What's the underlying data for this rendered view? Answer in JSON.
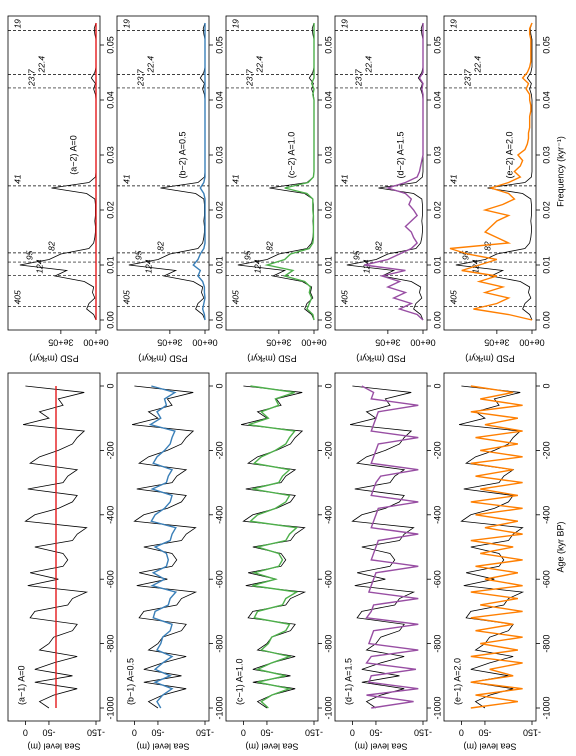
{
  "chart_data": [
    {
      "type": "line",
      "xlabel": "Age (kyr BP)",
      "ylabel": "Sea level (m)",
      "x": [
        -1000,
        -980,
        -960,
        -940,
        -920,
        -900,
        -880,
        -860,
        -840,
        -820,
        -800,
        -780,
        -760,
        -740,
        -720,
        -700,
        -680,
        -660,
        -640,
        -620,
        -600,
        -580,
        -560,
        -540,
        -520,
        -500,
        -480,
        -460,
        -440,
        -420,
        -400,
        -380,
        -360,
        -340,
        -320,
        -300,
        -280,
        -260,
        -240,
        -220,
        -200,
        -180,
        -160,
        -140,
        -120,
        -100,
        -80,
        -60,
        -40,
        -20,
        0
      ],
      "xlim": [
        -1000,
        0
      ],
      "xticks": [
        -1000,
        -800,
        -600,
        -400,
        -200,
        0
      ],
      "ylim": [
        -150,
        20
      ],
      "yticks": [
        0,
        -50,
        -150
      ],
      "observed": {
        "color": "#000000",
        "values": [
          -50,
          -30,
          -60,
          -110,
          -20,
          -100,
          -20,
          -60,
          -110,
          -30,
          -50,
          -60,
          -100,
          -110,
          -10,
          -20,
          -90,
          -100,
          -130,
          -5,
          -70,
          -10,
          -80,
          -90,
          -80,
          -20,
          -100,
          -110,
          -130,
          0,
          -20,
          -70,
          -100,
          -110,
          -5,
          -80,
          -90,
          -110,
          -10,
          -30,
          -70,
          -100,
          -110,
          -125,
          5,
          -50,
          -30,
          -80,
          -70,
          -125,
          0
        ]
      },
      "panels": [
        {
          "title": "(a−1) A=0",
          "color": "#e41a1c",
          "values": [
            -65,
            -65,
            -65,
            -65,
            -65,
            -65,
            -65,
            -65,
            -65,
            -65,
            -65,
            -65,
            -65,
            -65,
            -65,
            -65,
            -65,
            -65,
            -65,
            -65,
            -65,
            -65,
            -65,
            -65,
            -65,
            -65,
            -65,
            -65,
            -65,
            -65,
            -65,
            -65,
            -65,
            -65,
            -65,
            -65,
            -65,
            -65,
            -65,
            -65,
            -65,
            -65,
            -65,
            -65,
            -65,
            -65,
            -65,
            -65,
            -65,
            -65,
            -65
          ]
        },
        {
          "title": "(b−1) A=0.5",
          "color": "#3a7fb8",
          "values": [
            -56,
            -48,
            -60,
            -80,
            -44,
            -76,
            -44,
            -60,
            -80,
            -48,
            -56,
            -60,
            -76,
            -80,
            -40,
            -44,
            -72,
            -76,
            -88,
            -38,
            -64,
            -40,
            -68,
            -72,
            -68,
            -44,
            -76,
            -80,
            -88,
            -36,
            -44,
            -64,
            -76,
            -80,
            -38,
            -68,
            -72,
            -80,
            -40,
            -48,
            -64,
            -76,
            -80,
            -86,
            -34,
            -56,
            -48,
            -68,
            -64,
            -86,
            -36
          ]
        },
        {
          "title": "(c−1) A=1.0",
          "color": "#4daf4a",
          "values": [
            -53,
            -38,
            -60,
            -98,
            -30,
            -90,
            -30,
            -60,
            -98,
            -38,
            -53,
            -60,
            -90,
            -98,
            -23,
            -30,
            -83,
            -90,
            -113,
            -19,
            -68,
            -23,
            -75,
            -83,
            -75,
            -30,
            -90,
            -98,
            -113,
            -15,
            -30,
            -68,
            -90,
            -98,
            -19,
            -75,
            -83,
            -98,
            -23,
            -38,
            -68,
            -90,
            -98,
            -109,
            -11,
            -53,
            -38,
            -75,
            -68,
            -109,
            -15
          ]
        },
        {
          "title": "(d−1) A=1.5",
          "color": "#984ea3",
          "values": [
            -40,
            -130,
            -30,
            -140,
            -35,
            -40,
            -135,
            -30,
            -40,
            -140,
            -35,
            -40,
            -45,
            -140,
            -30,
            -40,
            -45,
            -140,
            -35,
            -40,
            -45,
            -50,
            -140,
            -40,
            -45,
            -50,
            -55,
            -140,
            -40,
            -45,
            -50,
            -55,
            -140,
            -40,
            -45,
            -50,
            -60,
            -140,
            -40,
            -45,
            -50,
            -55,
            -140,
            -40,
            -45,
            -50,
            -55,
            -140,
            -40,
            -45,
            -20
          ]
        },
        {
          "title": "(e−1) A=2.0",
          "color": "#ff7f00",
          "values": [
            -20,
            -120,
            -30,
            -130,
            -20,
            -110,
            -60,
            -130,
            -20,
            -120,
            -40,
            -130,
            -30,
            -110,
            -20,
            -130,
            -40,
            -120,
            -20,
            -130,
            -50,
            -120,
            -30,
            -130,
            -40,
            -110,
            -20,
            -130,
            -50,
            -120,
            -30,
            -130,
            -20,
            -120,
            -40,
            -130,
            -30,
            -110,
            -20,
            -130,
            -40,
            -120,
            -30,
            -130,
            -50,
            -120,
            -20,
            -130,
            -40,
            -110,
            -20
          ]
        }
      ]
    },
    {
      "type": "line",
      "xlabel": "Frequency (kyr⁻¹)",
      "ylabel": "PSD (m²kyr)",
      "x": [
        0,
        0.001,
        0.002,
        0.003,
        0.004,
        0.005,
        0.006,
        0.007,
        0.008,
        0.009,
        0.01,
        0.011,
        0.012,
        0.013,
        0.014,
        0.015,
        0.016,
        0.017,
        0.018,
        0.019,
        0.02,
        0.021,
        0.022,
        0.023,
        0.024,
        0.025,
        0.026,
        0.027,
        0.028,
        0.029,
        0.03,
        0.031,
        0.032,
        0.033,
        0.034,
        0.035,
        0.036,
        0.037,
        0.038,
        0.039,
        0.04,
        0.041,
        0.042,
        0.043,
        0.044,
        0.045,
        0.046,
        0.047,
        0.048,
        0.049,
        0.05,
        0.051,
        0.052,
        0.053,
        0.054
      ],
      "xlim": [
        0,
        0.054
      ],
      "xticks": [
        {
          "value": 0,
          "label": "0.00"
        },
        0.01,
        0.02,
        0.03,
        0.04,
        0.05
      ],
      "ylim": [
        0,
        700000
      ],
      "yticks": [
        {
          "value": 0,
          "label": "0e+00"
        },
        {
          "value": 300000,
          "label": "3e+05"
        }
      ],
      "periods": [
        {
          "value": 0.00247,
          "label": "405"
        },
        {
          "value": 0.00806,
          "label": "124"
        },
        {
          "value": 0.01053,
          "label": "95"
        },
        {
          "value": 0.0122,
          "label": "82"
        },
        {
          "value": 0.02439,
          "label": "41"
        },
        {
          "value": 0.04219,
          "label": "23.7"
        },
        {
          "value": 0.04464,
          "label": "22.4"
        },
        {
          "value": 0.05263,
          "label": "19"
        }
      ],
      "observed": {
        "color": "#000000",
        "values": [
          0,
          20000,
          80000,
          60000,
          10000,
          30000,
          20000,
          100000,
          350000,
          250000,
          650000,
          400000,
          300000,
          60000,
          20000,
          10000,
          5000,
          5000,
          10000,
          5000,
          5000,
          5000,
          10000,
          80000,
          380000,
          60000,
          5000,
          0,
          0,
          0,
          0,
          0,
          0,
          0,
          0,
          0,
          0,
          0,
          0,
          0,
          0,
          5000,
          20000,
          5000,
          40000,
          10000,
          0,
          0,
          0,
          0,
          0,
          0,
          10000,
          15000,
          0
        ]
      },
      "panels": [
        {
          "title": "(a−2) A=0",
          "color": "#e41a1c",
          "values": [
            0,
            0,
            0,
            0,
            0,
            0,
            0,
            0,
            0,
            0,
            0,
            0,
            0,
            0,
            0,
            0,
            0,
            0,
            0,
            0,
            0,
            0,
            0,
            0,
            0,
            0,
            0,
            0,
            0,
            0,
            0,
            0,
            0,
            0,
            0,
            0,
            0,
            0,
            0,
            0,
            0,
            0,
            0,
            0,
            0,
            0,
            0,
            0,
            0,
            0,
            0,
            0,
            0,
            0,
            0
          ]
        },
        {
          "title": "(b−2) A=0.5",
          "color": "#3a7fb8",
          "values": [
            0,
            5000,
            20000,
            10000,
            0,
            5000,
            5000,
            20000,
            60000,
            40000,
            100000,
            60000,
            40000,
            10000,
            0,
            0,
            0,
            0,
            0,
            0,
            0,
            0,
            0,
            10000,
            40000,
            10000,
            0,
            0,
            0,
            0,
            0,
            0,
            0,
            0,
            0,
            0,
            0,
            0,
            0,
            0,
            0,
            0,
            0,
            0,
            0,
            0,
            0,
            0,
            0,
            0,
            0,
            0,
            0,
            0,
            0
          ]
        },
        {
          "title": "(c−2) A=1.0",
          "color": "#4daf4a",
          "values": [
            0,
            10000,
            60000,
            40000,
            20000,
            40000,
            30000,
            80000,
            250000,
            180000,
            400000,
            250000,
            200000,
            40000,
            10000,
            5000,
            5000,
            5000,
            5000,
            5000,
            10000,
            10000,
            10000,
            60000,
            250000,
            50000,
            5000,
            0,
            0,
            0,
            0,
            0,
            0,
            0,
            0,
            0,
            0,
            0,
            0,
            0,
            0,
            10000,
            0,
            20000,
            0,
            0,
            0,
            0,
            0,
            0,
            0,
            0,
            0,
            0,
            0
          ]
        },
        {
          "title": "(d−2) A=1.5",
          "color": "#984ea3",
          "values": [
            0,
            50000,
            200000,
            100000,
            250000,
            150000,
            300000,
            200000,
            350000,
            150000,
            500000,
            300000,
            200000,
            100000,
            50000,
            80000,
            100000,
            150000,
            100000,
            50000,
            80000,
            120000,
            100000,
            150000,
            300000,
            150000,
            50000,
            30000,
            20000,
            10000,
            0,
            0,
            0,
            0,
            0,
            0,
            0,
            0,
            0,
            0,
            0,
            0,
            10000,
            0,
            30000,
            0,
            0,
            0,
            0,
            0,
            0,
            0,
            0,
            0,
            0
          ]
        },
        {
          "title": "(e−2) A=2.0",
          "color": "#ff7f00",
          "values": [
            0,
            200000,
            500000,
            300000,
            200000,
            400000,
            250000,
            450000,
            300000,
            600000,
            450000,
            300000,
            550000,
            700000,
            200000,
            300000,
            400000,
            350000,
            300000,
            200000,
            400000,
            250000,
            150000,
            200000,
            350000,
            200000,
            100000,
            150000,
            100000,
            80000,
            120000,
            60000,
            40000,
            30000,
            30000,
            20000,
            20000,
            20000,
            10000,
            10000,
            20000,
            20000,
            50000,
            30000,
            80000,
            40000,
            20000,
            10000,
            10000,
            10000,
            10000,
            10000,
            20000,
            20000,
            0
          ]
        }
      ]
    }
  ]
}
